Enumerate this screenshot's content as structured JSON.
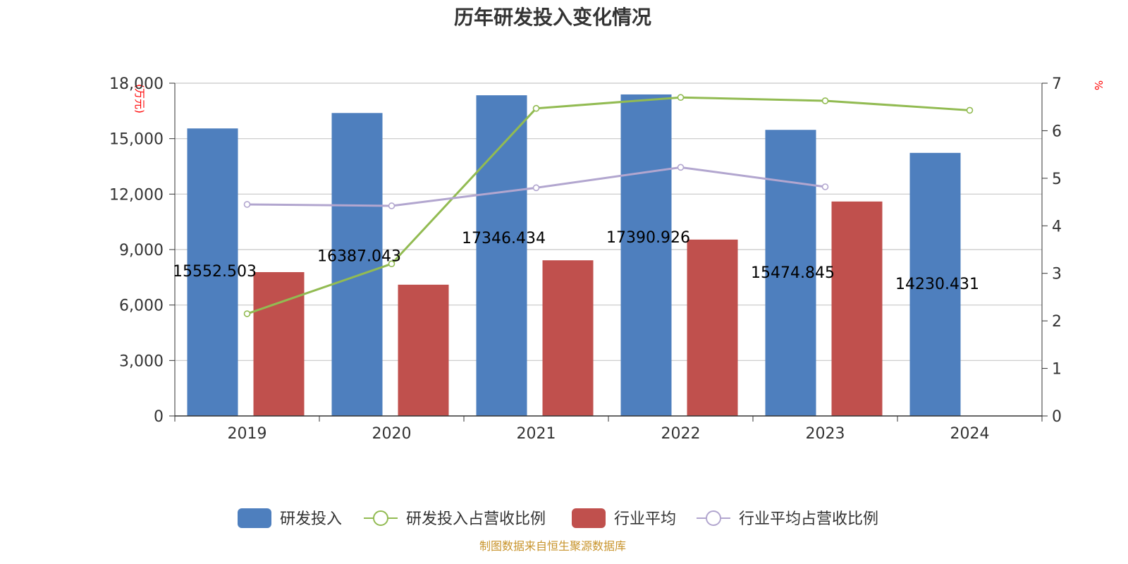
{
  "chart_data": {
    "type": "bar",
    "title": "历年研发投入变化情况",
    "categories": [
      "2019",
      "2020",
      "2021",
      "2022",
      "2023",
      "2024"
    ],
    "y_left": {
      "unit": "(万元)",
      "ylim": [
        0,
        18000
      ],
      "ticks": [
        0,
        3000,
        6000,
        9000,
        12000,
        15000,
        18000
      ],
      "tick_labels": [
        "0",
        "3,000",
        "6,000",
        "9,000",
        "12,000",
        "15,000",
        "18,000"
      ]
    },
    "y_right": {
      "unit": "%",
      "ylim": [
        0,
        7
      ],
      "ticks": [
        0,
        1,
        2,
        3,
        4,
        5,
        6,
        7
      ]
    },
    "series": [
      {
        "name": "研发投入",
        "kind": "bar",
        "axis": "left",
        "color": "#4e7fbe",
        "values": [
          15552.503,
          16387.043,
          17346.434,
          17390.926,
          15474.845,
          14230.431
        ],
        "labels": [
          "15552.503",
          "16387.043",
          "17346.434",
          "17390.926",
          "15474.845",
          "14230.431"
        ]
      },
      {
        "name": "研发投入占营收比例",
        "kind": "line",
        "axis": "right",
        "color": "#92bb52",
        "values": [
          2.15,
          3.2,
          6.47,
          6.7,
          6.63,
          6.43
        ]
      },
      {
        "name": "行业平均",
        "kind": "bar",
        "axis": "left",
        "color": "#c0504d",
        "values": [
          7780,
          7100,
          8420,
          9540,
          11600,
          null
        ]
      },
      {
        "name": "行业平均占营收比例",
        "kind": "line",
        "axis": "right",
        "color": "#b2a6cf",
        "values": [
          4.45,
          4.42,
          4.8,
          5.23,
          4.82,
          null
        ]
      }
    ],
    "grid": true,
    "legend_position": "bottom"
  },
  "source": {
    "text": "制图数据来自恒生聚源数据库",
    "color": "#c8942c"
  }
}
